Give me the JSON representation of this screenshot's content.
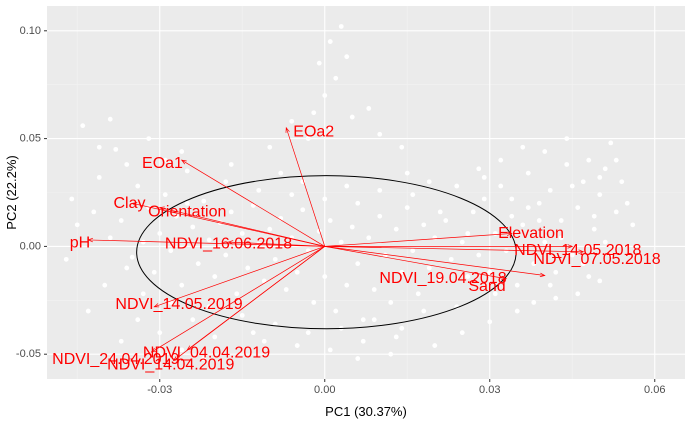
{
  "chart_data": {
    "type": "scatter",
    "title": "",
    "xlabel": "PC1 (30.37%)",
    "ylabel": "PC2 (22.2%)",
    "xlim": [
      -0.0505,
      0.0655
    ],
    "ylim": [
      -0.0615,
      0.1115
    ],
    "x_ticks": [
      {
        "value": -0.03,
        "label": "-0.03"
      },
      {
        "value": 0.0,
        "label": "0.00"
      },
      {
        "value": 0.03,
        "label": "0.03"
      },
      {
        "value": 0.06,
        "label": "0.06"
      }
    ],
    "y_ticks": [
      {
        "value": -0.05,
        "label": "-0.05"
      },
      {
        "value": 0.0,
        "label": "0.00"
      },
      {
        "value": 0.05,
        "label": "0.05"
      },
      {
        "value": 0.1,
        "label": "0.10"
      }
    ],
    "grid": true,
    "legend": "none",
    "ellipse": {
      "center": [
        0.0003,
        -0.0027
      ],
      "rx": 0.0345,
      "ry": 0.0355
    },
    "points": [
      [
        -0.041,
        0.032
      ],
      [
        -0.038,
        0.045
      ],
      [
        -0.037,
        0.012
      ],
      [
        -0.035,
        -0.005
      ],
      [
        -0.034,
        0.028
      ],
      [
        -0.033,
        0.002
      ],
      [
        -0.032,
        0.018
      ],
      [
        -0.031,
        -0.012
      ],
      [
        -0.03,
        0.006
      ],
      [
        -0.029,
        0.024
      ],
      [
        -0.028,
        -0.002
      ],
      [
        -0.027,
        0.014
      ],
      [
        -0.026,
        -0.018
      ],
      [
        -0.025,
        0.035
      ],
      [
        -0.024,
        0.009
      ],
      [
        -0.023,
        -0.008
      ],
      [
        -0.022,
        0.021
      ],
      [
        -0.021,
        0.003
      ],
      [
        -0.02,
        -0.014
      ],
      [
        -0.019,
        0.011
      ],
      [
        -0.018,
        -0.004
      ],
      [
        -0.017,
        0.016
      ],
      [
        -0.016,
        -0.022
      ],
      [
        -0.015,
        0.006
      ],
      [
        -0.014,
        -0.01
      ],
      [
        -0.013,
        0.019
      ],
      [
        -0.012,
        0.001
      ],
      [
        -0.011,
        -0.016
      ],
      [
        -0.01,
        0.008
      ],
      [
        -0.009,
        -0.006
      ],
      [
        -0.008,
        0.013
      ],
      [
        -0.007,
        -0.02
      ],
      [
        -0.006,
        0.004
      ],
      [
        -0.005,
        -0.012
      ],
      [
        -0.004,
        0.017
      ],
      [
        -0.003,
        -0.002
      ],
      [
        -0.002,
        -0.026
      ],
      [
        -0.001,
        0.007
      ],
      [
        0.0,
        -0.014
      ],
      [
        0.001,
        0.012
      ],
      [
        0.002,
        -0.03
      ],
      [
        0.003,
        0.002
      ],
      [
        0.004,
        -0.018
      ],
      [
        0.005,
        0.009
      ],
      [
        0.006,
        -0.008
      ],
      [
        0.007,
        -0.034
      ],
      [
        0.008,
        0.004
      ],
      [
        0.009,
        -0.02
      ],
      [
        0.01,
        0.014
      ],
      [
        0.011,
        -0.004
      ],
      [
        0.012,
        -0.026
      ],
      [
        0.013,
        0.008
      ],
      [
        0.014,
        -0.012
      ],
      [
        0.015,
        0.018
      ],
      [
        0.016,
        -0.002
      ],
      [
        0.017,
        -0.022
      ],
      [
        0.018,
        0.01
      ],
      [
        0.019,
        -0.01
      ],
      [
        0.02,
        0.004
      ],
      [
        0.021,
        -0.016
      ],
      [
        0.022,
        0.012
      ],
      [
        0.023,
        -0.006
      ],
      [
        0.024,
        -0.028
      ],
      [
        0.025,
        0.002
      ],
      [
        0.026,
        -0.014
      ],
      [
        0.027,
        0.016
      ],
      [
        0.028,
        -0.004
      ],
      [
        0.029,
        0.022
      ],
      [
        0.03,
        -0.012
      ],
      [
        0.031,
        0.006
      ],
      [
        0.032,
        0.028
      ],
      [
        0.033,
        -0.002
      ],
      [
        0.034,
        0.014
      ],
      [
        0.035,
        -0.018
      ],
      [
        0.036,
        0.01
      ],
      [
        0.037,
        0.034
      ],
      [
        0.038,
        -0.008
      ],
      [
        0.039,
        0.02
      ],
      [
        0.04,
        0.002
      ],
      [
        0.041,
        0.026
      ],
      [
        0.042,
        -0.012
      ],
      [
        0.043,
        0.012
      ],
      [
        0.044,
        0.038
      ],
      [
        0.045,
        -0.004
      ],
      [
        0.046,
        0.018
      ],
      [
        0.047,
        0.03
      ],
      [
        0.048,
        -0.014
      ],
      [
        0.049,
        0.008
      ],
      [
        0.05,
        0.024
      ],
      [
        0.051,
        0.036
      ],
      [
        -0.018,
        0.03
      ],
      [
        -0.012,
        0.026
      ],
      [
        -0.006,
        0.024
      ],
      [
        0.0,
        0.022
      ],
      [
        0.006,
        0.02
      ],
      [
        -0.015,
        -0.032
      ],
      [
        -0.009,
        -0.036
      ],
      [
        -0.003,
        -0.04
      ],
      [
        0.003,
        -0.038
      ],
      [
        0.009,
        -0.034
      ],
      [
        -0.024,
        -0.034
      ],
      [
        -0.02,
        -0.042
      ],
      [
        0.014,
        -0.038
      ],
      [
        0.018,
        -0.03
      ],
      [
        -0.028,
        -0.026
      ],
      [
        -0.045,
        0.01
      ],
      [
        -0.047,
        -0.006
      ],
      [
        -0.043,
        -0.03
      ],
      [
        -0.04,
        -0.018
      ],
      [
        -0.036,
        0.038
      ],
      [
        0.001,
        0.095
      ],
      [
        -0.001,
        0.085
      ],
      [
        0.002,
        0.078
      ],
      [
        0.0,
        0.07
      ],
      [
        -0.002,
        0.062
      ],
      [
        0.003,
        0.102
      ],
      [
        0.004,
        0.088
      ],
      [
        0.005,
        0.06
      ],
      [
        0.001,
        0.055
      ],
      [
        -0.003,
        0.05
      ],
      [
        0.01,
        0.052
      ],
      [
        0.014,
        0.046
      ],
      [
        0.008,
        0.064
      ],
      [
        -0.006,
        0.058
      ],
      [
        -0.01,
        0.046
      ],
      [
        0.052,
        0.048
      ],
      [
        0.053,
        0.04
      ],
      [
        0.054,
        0.03
      ],
      [
        0.055,
        0.02
      ],
      [
        0.056,
        0.01
      ],
      [
        0.052,
        -0.004
      ],
      [
        0.05,
        -0.016
      ],
      [
        0.046,
        -0.022
      ],
      [
        0.042,
        -0.024
      ],
      [
        0.038,
        -0.026
      ],
      [
        -0.044,
        0.056
      ],
      [
        -0.039,
        0.059
      ],
      [
        -0.032,
        0.05
      ],
      [
        -0.026,
        0.044
      ],
      [
        -0.041,
        0.046
      ],
      [
        0.025,
        -0.04
      ],
      [
        0.03,
        -0.035
      ],
      [
        0.02,
        -0.046
      ],
      [
        0.012,
        -0.05
      ],
      [
        0.006,
        -0.052
      ],
      [
        -0.03,
        -0.04
      ],
      [
        -0.026,
        -0.048
      ],
      [
        -0.034,
        -0.034
      ],
      [
        -0.037,
        -0.044
      ],
      [
        -0.022,
        -0.052
      ],
      [
        0.036,
        0.046
      ],
      [
        0.032,
        0.04
      ],
      [
        0.028,
        0.036
      ],
      [
        0.04,
        0.044
      ],
      [
        0.044,
        0.05
      ],
      [
        -0.008,
        0.034
      ],
      [
        -0.004,
        0.03
      ],
      [
        0.004,
        0.028
      ],
      [
        0.01,
        0.026
      ],
      [
        0.016,
        0.024
      ],
      [
        -0.011,
        -0.044
      ],
      [
        -0.005,
        -0.046
      ],
      [
        0.001,
        -0.048
      ],
      [
        0.007,
        -0.044
      ],
      [
        0.013,
        -0.042
      ],
      [
        0.019,
        0.03
      ],
      [
        0.024,
        0.028
      ],
      [
        0.029,
        0.032
      ],
      [
        0.034,
        0.022
      ],
      [
        0.039,
        0.012
      ],
      [
        0.043,
        0.004
      ],
      [
        0.047,
        -0.008
      ],
      [
        0.049,
        0.014
      ],
      [
        0.051,
        0.002
      ],
      [
        0.053,
        0.016
      ],
      [
        -0.046,
        0.022
      ],
      [
        -0.042,
        0.016
      ],
      [
        -0.039,
        0.004
      ],
      [
        -0.036,
        -0.01
      ],
      [
        -0.033,
        -0.022
      ],
      [
        -0.029,
        0.04
      ],
      [
        -0.025,
        0.02
      ],
      [
        -0.021,
        -0.028
      ],
      [
        -0.017,
        0.038
      ],
      [
        -0.013,
        -0.04
      ],
      [
        0.015,
        0.034
      ],
      [
        0.021,
        0.016
      ],
      [
        0.026,
        0.006
      ],
      [
        0.031,
        -0.022
      ],
      [
        0.035,
        -0.03
      ],
      [
        0.037,
        0.018
      ],
      [
        0.041,
        -0.018
      ],
      [
        0.045,
        0.028
      ],
      [
        0.048,
        0.04
      ],
      [
        0.05,
        0.032
      ]
    ],
    "vectors": [
      {
        "name": "EOa2",
        "x": -0.007,
        "y": 0.055,
        "label_x": -0.002,
        "label_y": 0.053
      },
      {
        "name": "EOa1",
        "x": -0.026,
        "y": 0.04,
        "label_x": -0.0295,
        "label_y": 0.0385
      },
      {
        "name": "Clay",
        "x": -0.035,
        "y": 0.02,
        "label_x": -0.0355,
        "label_y": 0.0198
      },
      {
        "name": "Orientation",
        "x": -0.03,
        "y": 0.018,
        "label_x": -0.025,
        "label_y": 0.016
      },
      {
        "name": "pH",
        "x": -0.043,
        "y": 0.003,
        "label_x": -0.0445,
        "label_y": 0.0015
      },
      {
        "name": "NDVI_16.06.2018",
        "x": -0.0175,
        "y": 0.002,
        "label_x": -0.0175,
        "label_y": 0.001
      },
      {
        "name": "NDVI_14.05.2019",
        "x": -0.031,
        "y": -0.028,
        "label_x": -0.0265,
        "label_y": -0.027
      },
      {
        "name": "NDVI_24.04.2019",
        "x": -0.0315,
        "y": -0.049,
        "label_x": -0.038,
        "label_y": -0.0525
      },
      {
        "name": "NDVI_04.04.2019",
        "x": -0.025,
        "y": -0.048,
        "label_x": -0.0215,
        "label_y": -0.0495
      },
      {
        "name": "NDVI_14.04.2019",
        "x": -0.0275,
        "y": -0.053,
        "label_x": -0.028,
        "label_y": -0.055
      },
      {
        "name": "Elevation",
        "x": 0.034,
        "y": 0.006,
        "label_x": 0.0375,
        "label_y": 0.006
      },
      {
        "name": "NDVI_14.05.2018",
        "x": 0.045,
        "y": 0.0,
        "label_x": 0.046,
        "label_y": -0.002
      },
      {
        "name": "NDVI_07.05.2018",
        "x": 0.047,
        "y": -0.0025,
        "label_x": 0.0495,
        "label_y": -0.006
      },
      {
        "name": "NDVI_19.04.2018",
        "x": 0.04,
        "y": -0.0135,
        "label_x": 0.0215,
        "label_y": -0.015
      },
      {
        "name": "Sand",
        "x": 0.033,
        "y": -0.015,
        "label_x": 0.0295,
        "label_y": -0.0185
      }
    ]
  },
  "colors": {
    "panel": "#ebebeb",
    "grid_major": "#ffffff",
    "grid_minor": "#f2f2f2",
    "points": "#ffffff",
    "vectors": "#ff0000",
    "ellipse": "#000000"
  }
}
